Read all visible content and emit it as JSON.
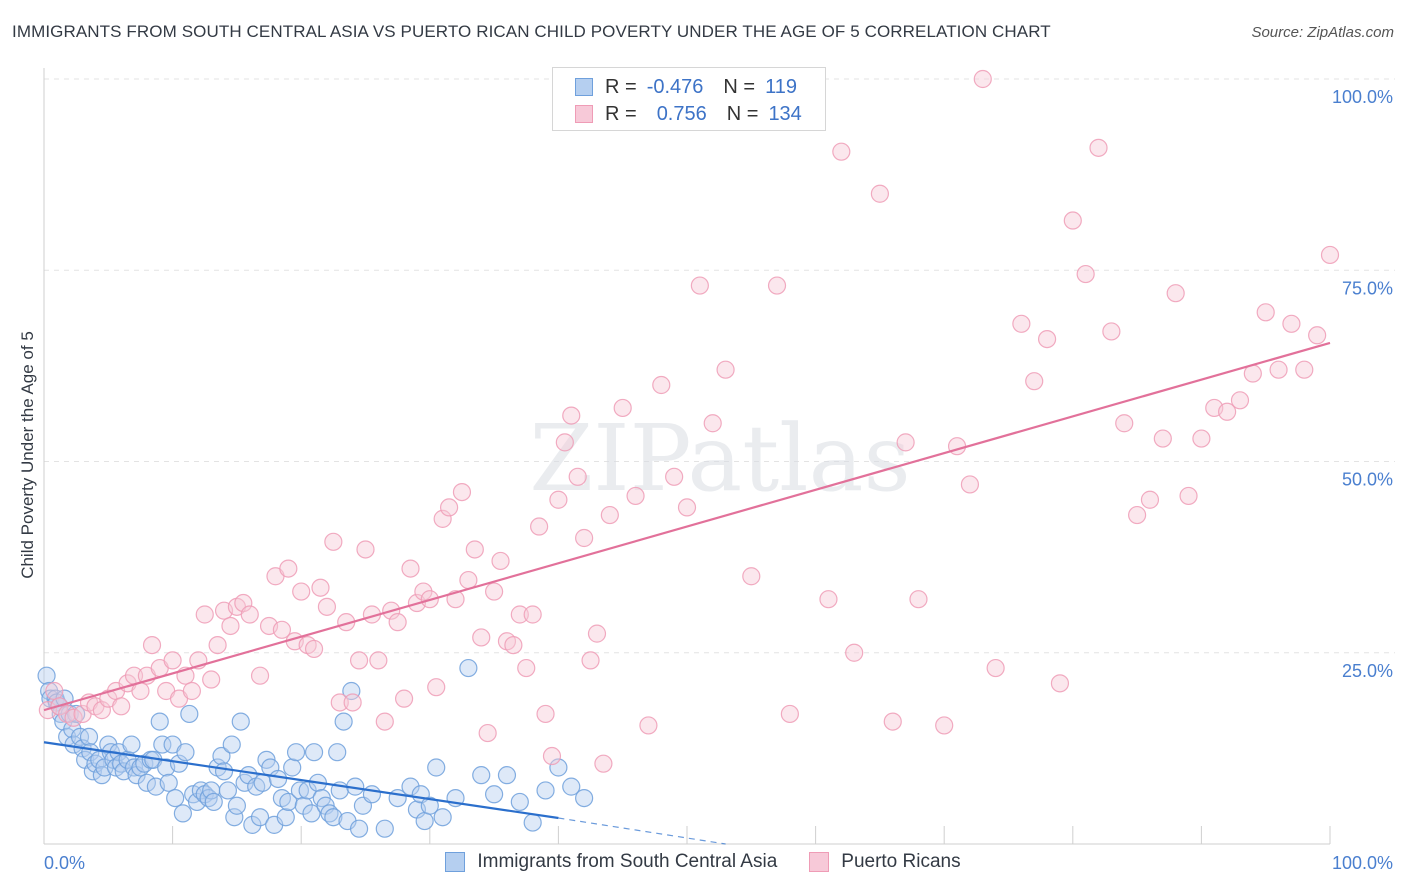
{
  "chart_data": {
    "type": "scatter",
    "title": "IMMIGRANTS FROM SOUTH CENTRAL ASIA VS PUERTO RICAN CHILD POVERTY UNDER THE AGE OF 5 CORRELATION CHART",
    "source": "Source: ZipAtlas.com",
    "xlabel": "",
    "ylabel": "Child Poverty Under the Age of 5",
    "xlim": [
      0,
      100
    ],
    "ylim": [
      0,
      100
    ],
    "x_tick_labels": [
      "0.0%",
      "100.0%"
    ],
    "y_ticks": [
      {
        "value": 25,
        "label": "25.0%"
      },
      {
        "value": 50,
        "label": "50.0%"
      },
      {
        "value": 75,
        "label": "75.0%"
      },
      {
        "value": 100,
        "label": "100.0%"
      }
    ],
    "watermark": "ZIPatlas",
    "legend": {
      "rows": [
        {
          "r_label": "R =",
          "r_value": "-0.476",
          "n_label": "N =",
          "n_value": "119"
        },
        {
          "r_label": "R =",
          "r_value": "0.756",
          "n_label": "N =",
          "n_value": "134"
        }
      ]
    },
    "series": [
      {
        "name": "Immigrants from South Central Asia",
        "color": "#6fa0dc",
        "fill": "#b5cff0",
        "line_color": "#2b6fcc",
        "trend": {
          "x0": 0,
          "y0": 13.3,
          "x1": 40,
          "y1": 3.4,
          "dash_to_x": 53,
          "dash_to_y": 0
        },
        "points": [
          [
            0.2,
            22
          ],
          [
            0.4,
            20
          ],
          [
            0.5,
            19
          ],
          [
            0.9,
            19
          ],
          [
            1,
            18.5
          ],
          [
            1.2,
            18
          ],
          [
            1.3,
            17
          ],
          [
            1.5,
            16
          ],
          [
            1.6,
            19
          ],
          [
            1.8,
            14
          ],
          [
            2,
            17
          ],
          [
            2.2,
            15
          ],
          [
            2.3,
            13
          ],
          [
            2.5,
            17
          ],
          [
            2.8,
            14
          ],
          [
            3,
            12.5
          ],
          [
            3.2,
            11
          ],
          [
            3.5,
            14
          ],
          [
            3.6,
            12
          ],
          [
            3.8,
            9.5
          ],
          [
            4,
            10.5
          ],
          [
            4.3,
            11
          ],
          [
            4.5,
            9
          ],
          [
            4.7,
            10
          ],
          [
            5,
            13
          ],
          [
            5.2,
            12
          ],
          [
            5.4,
            11
          ],
          [
            5.6,
            10
          ],
          [
            5.8,
            12
          ],
          [
            6,
            10.5
          ],
          [
            6.2,
            9.5
          ],
          [
            6.5,
            11
          ],
          [
            6.8,
            13
          ],
          [
            7,
            10
          ],
          [
            7.2,
            9
          ],
          [
            7.5,
            10
          ],
          [
            7.8,
            10.5
          ],
          [
            8,
            8
          ],
          [
            8.3,
            11
          ],
          [
            8.5,
            11
          ],
          [
            8.7,
            7.5
          ],
          [
            9,
            16
          ],
          [
            9.2,
            13
          ],
          [
            9.5,
            10
          ],
          [
            9.7,
            8
          ],
          [
            10,
            13
          ],
          [
            10.2,
            6
          ],
          [
            10.5,
            10.5
          ],
          [
            10.8,
            4
          ],
          [
            11,
            12
          ],
          [
            11.3,
            17
          ],
          [
            11.6,
            6.5
          ],
          [
            11.9,
            5.5
          ],
          [
            12.2,
            7
          ],
          [
            12.5,
            6.5
          ],
          [
            12.8,
            6
          ],
          [
            13,
            7
          ],
          [
            13.2,
            5.5
          ],
          [
            13.5,
            10
          ],
          [
            13.8,
            11.5
          ],
          [
            14,
            9.5
          ],
          [
            14.3,
            7
          ],
          [
            14.6,
            13
          ],
          [
            14.8,
            3.5
          ],
          [
            15,
            5
          ],
          [
            15.3,
            16
          ],
          [
            15.6,
            8
          ],
          [
            15.9,
            9
          ],
          [
            16.2,
            2.5
          ],
          [
            16.5,
            7.5
          ],
          [
            16.8,
            3.5
          ],
          [
            17,
            8
          ],
          [
            17.3,
            11
          ],
          [
            17.6,
            10
          ],
          [
            17.9,
            2.5
          ],
          [
            18.2,
            8.5
          ],
          [
            18.5,
            6
          ],
          [
            18.8,
            3.5
          ],
          [
            19,
            5.5
          ],
          [
            19.3,
            10
          ],
          [
            19.6,
            12
          ],
          [
            19.9,
            7
          ],
          [
            20.2,
            5
          ],
          [
            20.5,
            7
          ],
          [
            20.8,
            4
          ],
          [
            21,
            12
          ],
          [
            21.3,
            8
          ],
          [
            21.6,
            6
          ],
          [
            21.9,
            5
          ],
          [
            22.2,
            4
          ],
          [
            22.5,
            3.5
          ],
          [
            22.8,
            12
          ],
          [
            23,
            7
          ],
          [
            23.3,
            16
          ],
          [
            23.6,
            3
          ],
          [
            23.9,
            20
          ],
          [
            24.2,
            7.5
          ],
          [
            24.5,
            2
          ],
          [
            24.8,
            5
          ],
          [
            25.5,
            6.5
          ],
          [
            26.5,
            2
          ],
          [
            27.5,
            6
          ],
          [
            28.5,
            7.5
          ],
          [
            29,
            4.5
          ],
          [
            29.3,
            6.5
          ],
          [
            29.6,
            3
          ],
          [
            30,
            5
          ],
          [
            30.5,
            10
          ],
          [
            31,
            3.5
          ],
          [
            32,
            6
          ],
          [
            33,
            23
          ],
          [
            34,
            9
          ],
          [
            35,
            6.5
          ],
          [
            36,
            9
          ],
          [
            37,
            5.5
          ],
          [
            38,
            2.8
          ],
          [
            39,
            7
          ],
          [
            40,
            10
          ],
          [
            41,
            7.5
          ],
          [
            42,
            6
          ]
        ]
      },
      {
        "name": "Puerto Ricans",
        "color": "#ef9cb6",
        "fill": "#f7c9d8",
        "line_color": "#e2719a",
        "trend": {
          "x0": 0,
          "y0": 17.5,
          "x1": 100,
          "y1": 65.5
        },
        "points": [
          [
            0.3,
            17.5
          ],
          [
            0.8,
            20
          ],
          [
            1.2,
            18
          ],
          [
            1.8,
            17
          ],
          [
            2.3,
            16.5
          ],
          [
            3,
            17
          ],
          [
            3.5,
            18.5
          ],
          [
            4,
            18
          ],
          [
            4.5,
            17.5
          ],
          [
            5,
            19
          ],
          [
            5.6,
            20
          ],
          [
            6,
            18
          ],
          [
            6.5,
            21
          ],
          [
            7,
            22
          ],
          [
            7.5,
            20
          ],
          [
            8,
            22
          ],
          [
            8.4,
            26
          ],
          [
            9,
            23
          ],
          [
            9.5,
            20
          ],
          [
            10,
            24
          ],
          [
            10.5,
            19
          ],
          [
            11,
            22
          ],
          [
            11.5,
            20
          ],
          [
            12,
            24
          ],
          [
            12.5,
            30
          ],
          [
            13,
            21.5
          ],
          [
            13.5,
            26
          ],
          [
            14,
            30.5
          ],
          [
            14.5,
            28.5
          ],
          [
            15,
            31
          ],
          [
            15.5,
            31.5
          ],
          [
            16,
            30
          ],
          [
            16.8,
            22
          ],
          [
            17.5,
            28.5
          ],
          [
            18,
            35
          ],
          [
            18.5,
            28
          ],
          [
            19,
            36
          ],
          [
            19.5,
            26.5
          ],
          [
            20,
            33
          ],
          [
            20.5,
            26
          ],
          [
            21,
            25.5
          ],
          [
            21.5,
            33.5
          ],
          [
            22,
            31
          ],
          [
            22.5,
            39.5
          ],
          [
            23,
            18.5
          ],
          [
            23.5,
            29
          ],
          [
            24,
            18.5
          ],
          [
            24.5,
            24
          ],
          [
            25,
            38.5
          ],
          [
            25.5,
            30
          ],
          [
            26,
            24
          ],
          [
            26.5,
            16
          ],
          [
            27,
            30.5
          ],
          [
            27.5,
            29
          ],
          [
            28,
            19
          ],
          [
            28.5,
            36
          ],
          [
            29,
            31.5
          ],
          [
            29.5,
            33
          ],
          [
            30,
            32
          ],
          [
            30.5,
            20.5
          ],
          [
            31,
            42.5
          ],
          [
            31.5,
            44
          ],
          [
            32,
            32
          ],
          [
            32.5,
            46
          ],
          [
            33,
            34.5
          ],
          [
            33.5,
            38.5
          ],
          [
            34,
            27
          ],
          [
            34.5,
            14.5
          ],
          [
            35,
            33
          ],
          [
            35.5,
            37
          ],
          [
            36,
            26.5
          ],
          [
            36.5,
            26
          ],
          [
            37,
            30
          ],
          [
            37.5,
            23
          ],
          [
            38,
            30
          ],
          [
            38.5,
            41.5
          ],
          [
            39,
            17
          ],
          [
            39.5,
            11.5
          ],
          [
            40,
            45
          ],
          [
            40.5,
            52.5
          ],
          [
            41,
            56
          ],
          [
            41.5,
            48
          ],
          [
            42,
            40
          ],
          [
            42.5,
            24
          ],
          [
            43,
            27.5
          ],
          [
            43.5,
            10.5
          ],
          [
            44,
            43
          ],
          [
            45,
            57
          ],
          [
            46,
            45.5
          ],
          [
            47,
            15.5
          ],
          [
            48,
            60
          ],
          [
            49,
            48
          ],
          [
            50,
            44
          ],
          [
            51,
            73
          ],
          [
            52,
            55
          ],
          [
            53,
            62
          ],
          [
            55,
            35
          ],
          [
            57,
            73
          ],
          [
            58,
            17
          ],
          [
            60,
            100
          ],
          [
            61,
            32
          ],
          [
            62,
            90.5
          ],
          [
            63,
            25
          ],
          [
            65,
            85
          ],
          [
            66,
            16
          ],
          [
            67,
            52.5
          ],
          [
            68,
            32
          ],
          [
            70,
            15.5
          ],
          [
            71,
            52
          ],
          [
            72,
            47
          ],
          [
            73,
            100
          ],
          [
            74,
            23
          ],
          [
            76,
            68
          ],
          [
            77,
            60.5
          ],
          [
            78,
            66
          ],
          [
            79,
            21
          ],
          [
            80,
            81.5
          ],
          [
            81,
            74.5
          ],
          [
            82,
            91
          ],
          [
            83,
            67
          ],
          [
            84,
            55
          ],
          [
            85,
            43
          ],
          [
            86,
            45
          ],
          [
            87,
            53
          ],
          [
            88,
            72
          ],
          [
            89,
            45.5
          ],
          [
            90,
            53
          ],
          [
            91,
            57
          ],
          [
            92,
            56.5
          ],
          [
            93,
            58
          ],
          [
            94,
            61.5
          ],
          [
            95,
            69.5
          ],
          [
            96,
            62
          ],
          [
            97,
            68
          ],
          [
            98,
            62
          ],
          [
            99,
            66.5
          ],
          [
            100,
            77
          ]
        ]
      }
    ]
  }
}
